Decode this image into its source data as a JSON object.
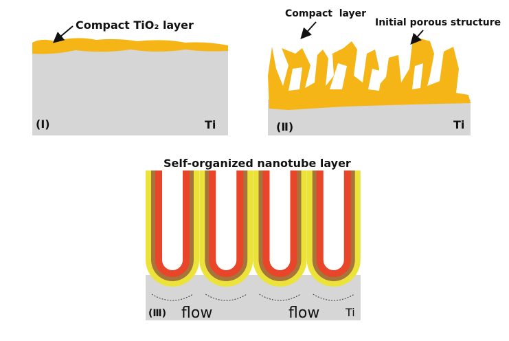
{
  "panels": [
    {
      "label": "(Ⅰ)",
      "substrate": "Ti",
      "annotations": [
        "Compact TiO₂ layer"
      ]
    },
    {
      "label": "(Ⅱ)",
      "substrate": "Ti",
      "annotations": [
        "Compact  layer",
        "Initial porous structure"
      ]
    },
    {
      "label": "(Ⅲ)",
      "substrate": "Ti",
      "title": "Self-organized nanotube layer",
      "flow_labels": [
        "flow",
        "flow"
      ]
    }
  ]
}
